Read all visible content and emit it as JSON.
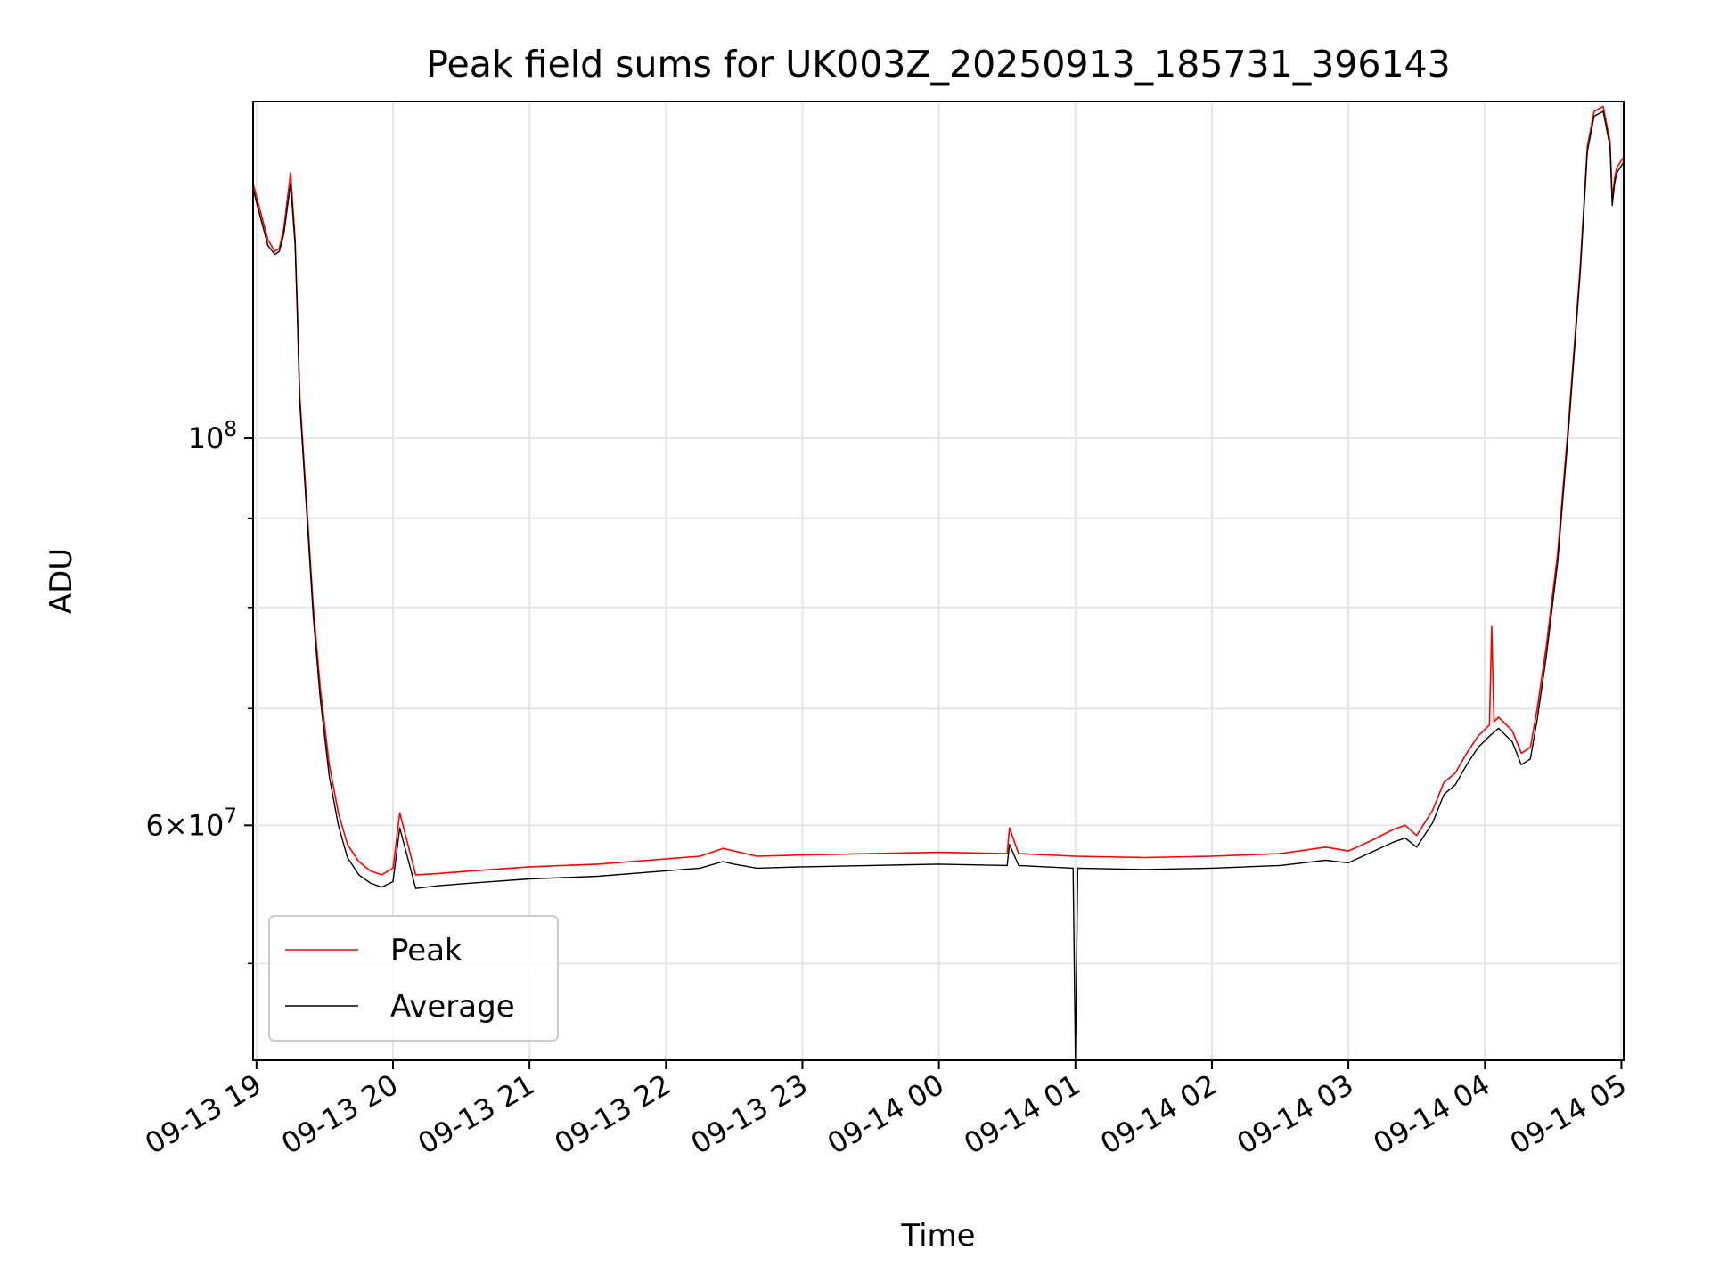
{
  "chart_data": {
    "type": "line",
    "title": "Peak field sums for UK003Z_20250913_185731_396143",
    "xlabel": "Time",
    "ylabel": "ADU",
    "y_scale": "log",
    "ylim": [
      44000000,
      156000000
    ],
    "xlim": [
      "2025-09-13 18:58:30",
      "2025-09-14 05:01:00"
    ],
    "x_ticks": [
      {
        "value": "2025-09-13 19:00",
        "label": "09-13 19"
      },
      {
        "value": "2025-09-13 20:00",
        "label": "09-13 20"
      },
      {
        "value": "2025-09-13 21:00",
        "label": "09-13 21"
      },
      {
        "value": "2025-09-13 22:00",
        "label": "09-13 22"
      },
      {
        "value": "2025-09-13 23:00",
        "label": "09-13 23"
      },
      {
        "value": "2025-09-14 00:00",
        "label": "09-14 00"
      },
      {
        "value": "2025-09-14 01:00",
        "label": "09-14 01"
      },
      {
        "value": "2025-09-14 02:00",
        "label": "09-14 02"
      },
      {
        "value": "2025-09-14 03:00",
        "label": "09-14 03"
      },
      {
        "value": "2025-09-14 04:00",
        "label": "09-14 04"
      },
      {
        "value": "2025-09-14 05:00",
        "label": "09-14 05"
      }
    ],
    "y_ticks": [
      {
        "value": 100000000,
        "label": "10",
        "exponent": "8"
      },
      {
        "value": 60000000,
        "label": "6×10",
        "exponent": "7"
      }
    ],
    "y_minor_ticks": [
      50000000,
      70000000,
      80000000,
      90000000
    ],
    "grid": true,
    "legend": "lower-left",
    "series": [
      {
        "name": "Peak",
        "color": "#ff0000",
        "x": [
          "2025-09-13 18:58:30",
          "2025-09-13 19:01:00",
          "2025-09-13 19:05:00",
          "2025-09-13 19:08:00",
          "2025-09-13 19:10:00",
          "2025-09-13 19:12:00",
          "2025-09-13 19:15:00",
          "2025-09-13 19:17:00",
          "2025-09-13 19:18:00",
          "2025-09-13 19:19:00",
          "2025-09-13 19:22:00",
          "2025-09-13 19:25:00",
          "2025-09-13 19:28:00",
          "2025-09-13 19:32:00",
          "2025-09-13 19:36:00",
          "2025-09-13 19:40:00",
          "2025-09-13 19:45:00",
          "2025-09-13 19:50:00",
          "2025-09-13 19:55:00",
          "2025-09-13 20:00:00",
          "2025-09-13 20:03:00",
          "2025-09-13 20:10:00",
          "2025-09-13 20:20:00",
          "2025-09-13 20:35:00",
          "2025-09-13 21:00:00",
          "2025-09-13 21:30:00",
          "2025-09-13 22:00:00",
          "2025-09-13 22:15:00",
          "2025-09-13 22:25:00",
          "2025-09-13 22:30:00",
          "2025-09-13 22:40:00",
          "2025-09-13 23:00:00",
          "2025-09-13 23:30:00",
          "2025-09-14 00:00:00",
          "2025-09-14 00:30:00",
          "2025-09-14 00:31:00",
          "2025-09-14 00:35:00",
          "2025-09-14 01:00:00",
          "2025-09-14 01:30:00",
          "2025-09-14 02:00:00",
          "2025-09-14 02:30:00",
          "2025-09-14 02:50:00",
          "2025-09-14 03:00:00",
          "2025-09-14 03:10:00",
          "2025-09-14 03:20:00",
          "2025-09-14 03:25:00",
          "2025-09-14 03:30:00",
          "2025-09-14 03:37:00",
          "2025-09-14 03:42:00",
          "2025-09-14 03:47:00",
          "2025-09-14 03:52:00",
          "2025-09-14 03:57:00",
          "2025-09-14 04:02:00",
          "2025-09-14 04:03:00",
          "2025-09-14 04:04:00",
          "2025-09-14 04:06:00",
          "2025-09-14 04:12:00",
          "2025-09-14 04:16:00",
          "2025-09-14 04:20:00",
          "2025-09-14 04:23:00",
          "2025-09-14 04:27:00",
          "2025-09-14 04:32:00",
          "2025-09-14 04:37:00",
          "2025-09-14 04:42:00",
          "2025-09-14 04:45:00",
          "2025-09-14 04:48:00",
          "2025-09-14 04:52:00",
          "2025-09-14 04:55:00",
          "2025-09-14 04:56:00",
          "2025-09-14 04:57:00",
          "2025-09-14 04:58:00",
          "2025-09-14 05:01:00"
        ],
        "y": [
          140000000,
          136000000,
          130000000,
          128000000,
          128500000,
          132000000,
          142000000,
          130000000,
          118000000,
          106000000,
          92000000,
          80000000,
          72000000,
          65000000,
          61000000,
          58500000,
          57200000,
          56500000,
          56200000,
          56700000,
          61000000,
          56200000,
          56300000,
          56500000,
          56800000,
          57000000,
          57400000,
          57600000,
          58200000,
          58000000,
          57600000,
          57700000,
          57800000,
          57900000,
          57800000,
          59800000,
          57800000,
          57600000,
          57500000,
          57600000,
          57800000,
          58300000,
          58000000,
          58800000,
          59700000,
          60000000,
          59200000,
          61200000,
          63500000,
          64300000,
          66000000,
          67500000,
          68500000,
          78000000,
          68800000,
          69200000,
          68000000,
          66000000,
          66500000,
          70000000,
          76000000,
          86000000,
          103000000,
          126000000,
          147000000,
          154000000,
          155000000,
          148000000,
          137000000,
          141000000,
          143000000,
          145000000
        ]
      },
      {
        "name": "Average",
        "color": "#000000",
        "x": [
          "2025-09-13 18:58:30",
          "2025-09-13 19:01:00",
          "2025-09-13 19:05:00",
          "2025-09-13 19:08:00",
          "2025-09-13 19:10:00",
          "2025-09-13 19:12:00",
          "2025-09-13 19:15:00",
          "2025-09-13 19:17:00",
          "2025-09-13 19:18:00",
          "2025-09-13 19:19:00",
          "2025-09-13 19:22:00",
          "2025-09-13 19:25:00",
          "2025-09-13 19:28:00",
          "2025-09-13 19:32:00",
          "2025-09-13 19:36:00",
          "2025-09-13 19:40:00",
          "2025-09-13 19:45:00",
          "2025-09-13 19:50:00",
          "2025-09-13 19:55:00",
          "2025-09-13 20:00:00",
          "2025-09-13 20:03:00",
          "2025-09-13 20:10:00",
          "2025-09-13 20:20:00",
          "2025-09-13 20:35:00",
          "2025-09-13 21:00:00",
          "2025-09-13 21:30:00",
          "2025-09-13 22:00:00",
          "2025-09-13 22:15:00",
          "2025-09-13 22:25:00",
          "2025-09-13 22:30:00",
          "2025-09-13 22:40:00",
          "2025-09-13 23:00:00",
          "2025-09-13 23:30:00",
          "2025-09-14 00:00:00",
          "2025-09-14 00:30:00",
          "2025-09-14 00:31:00",
          "2025-09-14 00:35:00",
          "2025-09-14 00:59:00",
          "2025-09-14 01:00:00",
          "2025-09-14 01:01:00",
          "2025-09-14 01:30:00",
          "2025-09-14 02:00:00",
          "2025-09-14 02:30:00",
          "2025-09-14 02:50:00",
          "2025-09-14 03:00:00",
          "2025-09-14 03:10:00",
          "2025-09-14 03:20:00",
          "2025-09-14 03:25:00",
          "2025-09-14 03:30:00",
          "2025-09-14 03:37:00",
          "2025-09-14 03:42:00",
          "2025-09-14 03:47:00",
          "2025-09-14 03:52:00",
          "2025-09-14 03:57:00",
          "2025-09-14 04:02:00",
          "2025-09-14 04:06:00",
          "2025-09-14 04:12:00",
          "2025-09-14 04:16:00",
          "2025-09-14 04:20:00",
          "2025-09-14 04:23:00",
          "2025-09-14 04:27:00",
          "2025-09-14 04:32:00",
          "2025-09-14 04:37:00",
          "2025-09-14 04:42:00",
          "2025-09-14 04:45:00",
          "2025-09-14 04:48:00",
          "2025-09-14 04:52:00",
          "2025-09-14 04:55:00",
          "2025-09-14 04:56:00",
          "2025-09-14 04:57:00",
          "2025-09-14 04:58:00",
          "2025-09-14 05:01:00"
        ],
        "y": [
          139000000,
          135000000,
          129000000,
          127500000,
          128000000,
          131000000,
          140000000,
          129000000,
          117000000,
          105000000,
          91000000,
          79000000,
          71000000,
          64000000,
          60000000,
          57500000,
          56200000,
          55600000,
          55300000,
          55700000,
          59800000,
          55200000,
          55400000,
          55600000,
          55900000,
          56100000,
          56500000,
          56700000,
          57200000,
          57000000,
          56700000,
          56800000,
          56900000,
          57000000,
          56900000,
          58500000,
          56900000,
          56700000,
          44000000,
          56700000,
          56600000,
          56700000,
          56900000,
          57300000,
          57100000,
          57900000,
          58700000,
          59000000,
          58300000,
          60200000,
          62500000,
          63300000,
          65000000,
          66500000,
          67500000,
          68200000,
          67000000,
          65000000,
          65500000,
          69000000,
          75000000,
          85000000,
          102000000,
          125000000,
          146000000,
          153000000,
          154000000,
          147000000,
          136000000,
          140000000,
          142000000,
          144000000
        ]
      }
    ]
  }
}
